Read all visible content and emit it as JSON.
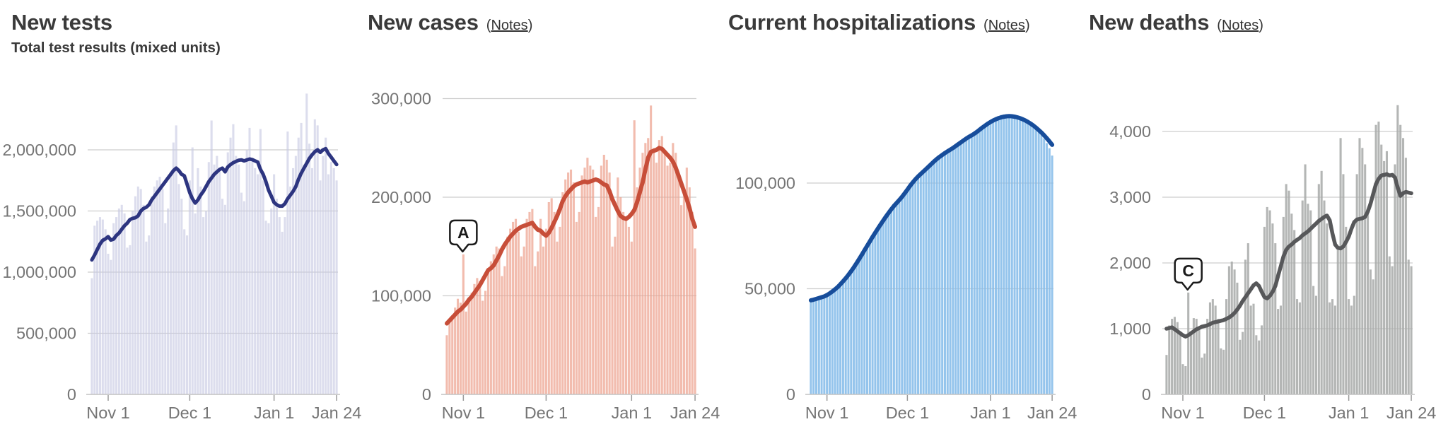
{
  "x_axis": {
    "tick_labels": [
      "Nov 1",
      "Dec 1",
      "Jan 1",
      "Jan 24"
    ],
    "tick_day_indices": [
      6,
      36,
      67,
      90
    ],
    "num_days": 91
  },
  "chart_data": [
    {
      "type": "bar+line",
      "title": "New tests",
      "subtitle": "Total test results (mixed units)",
      "notes_label": null,
      "colors": {
        "bar": "#c6c8e2",
        "line": "#2d3580"
      },
      "value_scale": 1000,
      "ylim": [
        0,
        2500000
      ],
      "grid": true,
      "legend_position": "none",
      "y_ticks": [
        {
          "label": "2,000,000",
          "value": 2000000
        },
        {
          "label": "1,500,000",
          "value": 1500000
        },
        {
          "label": "1,000,000",
          "value": 1000000
        },
        {
          "label": "500,000",
          "value": 500000
        },
        {
          "label": "0",
          "value": 0
        }
      ],
      "series": [
        {
          "name": "daily-total-test-results",
          "type": "bar",
          "values": [
            950,
            1380,
            1420,
            1450,
            1430,
            1350,
            1150,
            1100,
            1400,
            1450,
            1520,
            1550,
            1480,
            1200,
            1220,
            1500,
            1620,
            1700,
            1680,
            1550,
            1250,
            1300,
            1620,
            1700,
            1750,
            1780,
            1680,
            1400,
            1520,
            1820,
            2060,
            2200,
            1720,
            1600,
            1350,
            1300,
            1750,
            2020,
            1480,
            1850,
            1700,
            1450,
            1500,
            1900,
            2240,
            1880,
            1950,
            1820,
            1600,
            1550,
            1980,
            2100,
            2210,
            1950,
            1880,
            1650,
            1580,
            2000,
            2180,
            1920,
            1850,
            1800,
            2170,
            1750,
            1420,
            1400,
            1520,
            1800,
            1600,
            1450,
            1330,
            1450,
            2150,
            1700,
            1850,
            1950,
            2100,
            2220,
            1880,
            2460,
            2050,
            1850,
            2250,
            2200,
            1750,
            1950,
            2100,
            1800,
            1900,
            1850,
            1750
          ]
        },
        {
          "name": "7-day-average",
          "type": "line",
          "values": [
            1100,
            1140,
            1185,
            1230,
            1260,
            1272,
            1290,
            1262,
            1270,
            1300,
            1320,
            1350,
            1380,
            1400,
            1430,
            1440,
            1445,
            1460,
            1500,
            1520,
            1530,
            1550,
            1590,
            1620,
            1650,
            1680,
            1710,
            1740,
            1770,
            1800,
            1830,
            1850,
            1830,
            1800,
            1788,
            1720,
            1650,
            1600,
            1565,
            1590,
            1630,
            1660,
            1700,
            1740,
            1770,
            1800,
            1820,
            1840,
            1850,
            1820,
            1860,
            1880,
            1895,
            1905,
            1915,
            1918,
            1910,
            1918,
            1925,
            1920,
            1910,
            1900,
            1840,
            1800,
            1740,
            1670,
            1620,
            1570,
            1550,
            1540,
            1540,
            1560,
            1600,
            1630,
            1660,
            1700,
            1760,
            1810,
            1850,
            1890,
            1930,
            1960,
            1985,
            2000,
            1980,
            2000,
            2010,
            1970,
            1940,
            1910,
            1880
          ]
        }
      ],
      "annotation": null
    },
    {
      "type": "bar+line",
      "title": "New cases",
      "subtitle": null,
      "notes_label": "Notes",
      "colors": {
        "bar": "#eda28f",
        "line": "#c74e39"
      },
      "value_scale": 1000,
      "ylim": [
        0,
        310000
      ],
      "grid": true,
      "legend_position": "none",
      "y_ticks": [
        {
          "label": "300,000",
          "value": 300000
        },
        {
          "label": "200,000",
          "value": 200000
        },
        {
          "label": "100,000",
          "value": 100000
        },
        {
          "label": "0",
          "value": 0
        }
      ],
      "series": [
        {
          "name": "daily-new-cases",
          "type": "bar",
          "values": [
            60,
            74,
            80,
            88,
            97,
            93,
            142,
            84,
            98,
            103,
            112,
            118,
            115,
            95,
            105,
            128,
            135,
            142,
            150,
            148,
            120,
            130,
            160,
            168,
            175,
            178,
            165,
            140,
            150,
            178,
            185,
            188,
            130,
            145,
            178,
            150,
            168,
            195,
            199,
            185,
            155,
            170,
            205,
            218,
            225,
            228,
            215,
            175,
            185,
            222,
            230,
            240,
            232,
            228,
            180,
            190,
            232,
            243,
            238,
            225,
            150,
            160,
            220,
            200,
            185,
            180,
            170,
            155,
            278,
            210,
            230,
            245,
            255,
            260,
            293,
            250,
            235,
            258,
            262,
            248,
            232,
            235,
            255,
            245,
            225,
            192,
            205,
            230,
            210,
            185,
            148
          ]
        },
        {
          "name": "7-day-average",
          "type": "line",
          "values": [
            72,
            75,
            78,
            81,
            84,
            86,
            89,
            92,
            96,
            99,
            103,
            107,
            111,
            116,
            121,
            126,
            128,
            131,
            136,
            141,
            147,
            152,
            156,
            160,
            163,
            166,
            168,
            170,
            171,
            172,
            173,
            174,
            170,
            167,
            166,
            163,
            161,
            164,
            169,
            175,
            181,
            188,
            196,
            201,
            205,
            208,
            211,
            213,
            214,
            215,
            216,
            215,
            216,
            217,
            218,
            217,
            215,
            213,
            212,
            206,
            198,
            192,
            186,
            181,
            179,
            178,
            180,
            183,
            187,
            195,
            205,
            215,
            228,
            240,
            246,
            247,
            248,
            250,
            249,
            246,
            243,
            240,
            236,
            230,
            222,
            214,
            206,
            198,
            189,
            178,
            170
          ]
        }
      ],
      "annotation": {
        "label": "A",
        "day": 6
      }
    },
    {
      "type": "bar+line",
      "title": "Current hospitalizations",
      "subtitle": null,
      "notes_label": "Notes",
      "colors": {
        "bar": "#85bce9",
        "line": "#174d9b"
      },
      "value_scale": 1000,
      "ylim": [
        0,
        140000
      ],
      "grid": true,
      "legend_position": "none",
      "y_ticks": [
        {
          "label": "100,000",
          "value": 100000
        },
        {
          "label": "50,000",
          "value": 50000
        },
        {
          "label": "0",
          "value": 0
        }
      ],
      "series": [
        {
          "name": "daily-hospitalized",
          "type": "bar",
          "values": [
            43.5,
            44.2,
            44.8,
            45.3,
            45.9,
            46.2,
            46.5,
            47.2,
            48.3,
            49.5,
            50.6,
            52,
            53.3,
            54.3,
            56.1,
            58,
            60,
            62.2,
            64.3,
            65.9,
            67.5,
            69.9,
            72.2,
            74.3,
            76.5,
            78.7,
            80,
            81.5,
            83.8,
            85.9,
            87.9,
            89.5,
            90.2,
            91.2,
            93,
            95.1,
            97,
            99,
            100.8,
            102.3,
            103.5,
            104.2,
            105,
            106.4,
            107.9,
            109.3,
            110.6,
            111.5,
            112,
            112.8,
            114,
            115.2,
            116.2,
            117,
            117.6,
            118.2,
            119.2,
            120.4,
            121.5,
            122.3,
            122,
            123.2,
            124.5,
            125.8,
            127,
            128,
            128.6,
            128.8,
            130,
            131,
            131.7,
            132.2,
            132.4,
            132.5,
            132.2,
            131.8,
            131.3,
            131.7,
            131.2,
            130.5,
            129.6,
            128.5,
            127.3,
            126.2,
            125.5,
            124.3,
            122.8,
            121,
            118.9,
            116.5,
            113
          ]
        },
        {
          "name": "7-day-average",
          "type": "line",
          "values": [
            44.5,
            44.8,
            45.2,
            45.6,
            46,
            46.4,
            47,
            47.8,
            48.7,
            49.7,
            50.8,
            52.1,
            53.5,
            55,
            56.6,
            58.3,
            60.1,
            62,
            64,
            66.1,
            68.2,
            70.3,
            72.4,
            74.5,
            76.5,
            78.5,
            80.4,
            82.3,
            84.1,
            85.9,
            87.6,
            89.2,
            90.6,
            92,
            93.5,
            95.2,
            96.9,
            98.7,
            100.3,
            101.8,
            103.1,
            104.3,
            105.5,
            106.7,
            107.9,
            109.1,
            110.3,
            111.4,
            112.4,
            113.3,
            114.2,
            115,
            115.8,
            116.6,
            117.5,
            118.4,
            119.3,
            120.2,
            121.1,
            121.9,
            122.6,
            123.4,
            124.3,
            125.3,
            126.3,
            127.2,
            128.1,
            128.9,
            129.6,
            130.2,
            130.7,
            131.1,
            131.4,
            131.6,
            131.7,
            131.6,
            131.4,
            131.1,
            130.7,
            130.2,
            129.6,
            128.9,
            128.1,
            127.2,
            126.2,
            125.1,
            123.9,
            122.6,
            121.2,
            119.7,
            118.1
          ]
        }
      ],
      "annotation": null
    },
    {
      "type": "bar+line",
      "title": "New deaths",
      "subtitle": null,
      "notes_label": "Notes",
      "colors": {
        "bar": "#a7a9a8",
        "line": "#57585a"
      },
      "value_scale": 1,
      "ylim": [
        0,
        4500
      ],
      "grid": true,
      "legend_position": "none",
      "y_ticks": [
        {
          "label": "4,000",
          "value": 4000
        },
        {
          "label": "3,000",
          "value": 3000
        },
        {
          "label": "2,000",
          "value": 2000
        },
        {
          "label": "1,000",
          "value": 1000
        },
        {
          "label": "0",
          "value": 0
        }
      ],
      "series": [
        {
          "name": "daily-new-deaths",
          "type": "bar",
          "values": [
            600,
            1050,
            1150,
            1180,
            1100,
            950,
            460,
            430,
            1550,
            900,
            1160,
            1150,
            1000,
            560,
            620,
            1150,
            1400,
            1450,
            1350,
            1150,
            700,
            680,
            1450,
            1950,
            2020,
            1900,
            1700,
            830,
            950,
            2050,
            2300,
            1350,
            1380,
            900,
            820,
            1050,
            2550,
            2850,
            2800,
            2600,
            2300,
            1300,
            1350,
            2700,
            3200,
            3100,
            2750,
            2500,
            1450,
            1400,
            2950,
            3500,
            2900,
            2800,
            1650,
            1500,
            3200,
            3400,
            2950,
            2600,
            1400,
            1450,
            1350,
            2200,
            3900,
            3350,
            2550,
            1450,
            1350,
            1500,
            3350,
            3900,
            3750,
            3500,
            2800,
            1900,
            1750,
            4100,
            4150,
            3800,
            3550,
            3700,
            2100,
            1950,
            3500,
            4400,
            4100,
            3900,
            3600,
            2050,
            1950
          ]
        },
        {
          "name": "7-day-average",
          "type": "line",
          "values": [
            1000,
            1010,
            1020,
            990,
            960,
            930,
            900,
            880,
            900,
            930,
            960,
            990,
            1010,
            1030,
            1040,
            1050,
            1070,
            1090,
            1100,
            1110,
            1120,
            1130,
            1150,
            1170,
            1200,
            1240,
            1290,
            1350,
            1420,
            1480,
            1540,
            1600,
            1660,
            1690,
            1650,
            1560,
            1480,
            1460,
            1500,
            1560,
            1650,
            1800,
            1950,
            2100,
            2200,
            2250,
            2280,
            2320,
            2350,
            2380,
            2420,
            2450,
            2480,
            2520,
            2560,
            2600,
            2640,
            2670,
            2700,
            2720,
            2650,
            2450,
            2280,
            2230,
            2220,
            2250,
            2320,
            2400,
            2520,
            2620,
            2660,
            2670,
            2680,
            2700,
            2780,
            2900,
            3050,
            3200,
            3280,
            3330,
            3340,
            3350,
            3330,
            3340,
            3300,
            3150,
            3020,
            3060,
            3080,
            3070,
            3060
          ]
        }
      ],
      "annotation": {
        "label": "C",
        "day": 8
      }
    }
  ]
}
